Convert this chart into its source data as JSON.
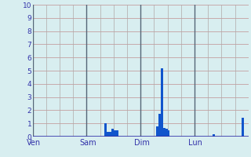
{
  "background_color": "#d8eef0",
  "grid_color_h": "#c8a0a0",
  "grid_color_v": "#c0b0b0",
  "bar_color": "#1155cc",
  "axis_color": "#3333aa",
  "tick_color": "#3333aa",
  "sep_color": "#556677",
  "ylim": [
    0,
    10
  ],
  "yticks": [
    0,
    1,
    2,
    3,
    4,
    5,
    6,
    7,
    8,
    9,
    10
  ],
  "day_labels": [
    "Ven",
    "Sam",
    "Dim",
    "Lun"
  ],
  "day_positions": [
    0,
    24,
    48,
    72
  ],
  "num_bars": 96,
  "bar_heights": [
    0.0,
    0.0,
    0.0,
    0.0,
    0.0,
    0.0,
    0.0,
    0.0,
    0.0,
    0.0,
    0.0,
    0.0,
    0.0,
    0.0,
    0.0,
    0.0,
    0.0,
    0.0,
    0.0,
    0.0,
    0.0,
    0.0,
    0.0,
    0.0,
    0.0,
    0.0,
    0.0,
    0.0,
    0.0,
    0.0,
    0.0,
    0.0,
    1.0,
    0.35,
    0.35,
    0.6,
    0.45,
    0.45,
    0.0,
    0.0,
    0.0,
    0.0,
    0.0,
    0.0,
    0.0,
    0.0,
    0.0,
    0.0,
    0.0,
    0.0,
    0.0,
    0.0,
    0.0,
    0.0,
    0.0,
    0.8,
    1.7,
    5.2,
    0.65,
    0.6,
    0.5,
    0.0,
    0.0,
    0.0,
    0.0,
    0.0,
    0.0,
    0.0,
    0.0,
    0.0,
    0.0,
    0.0,
    0.0,
    0.0,
    0.0,
    0.0,
    0.0,
    0.0,
    0.0,
    0.0,
    0.2,
    0.0,
    0.0,
    0.0,
    0.0,
    0.0,
    0.0,
    0.0,
    0.0,
    0.0,
    0.0,
    0.0,
    0.0,
    1.4,
    0.0,
    0.0
  ]
}
